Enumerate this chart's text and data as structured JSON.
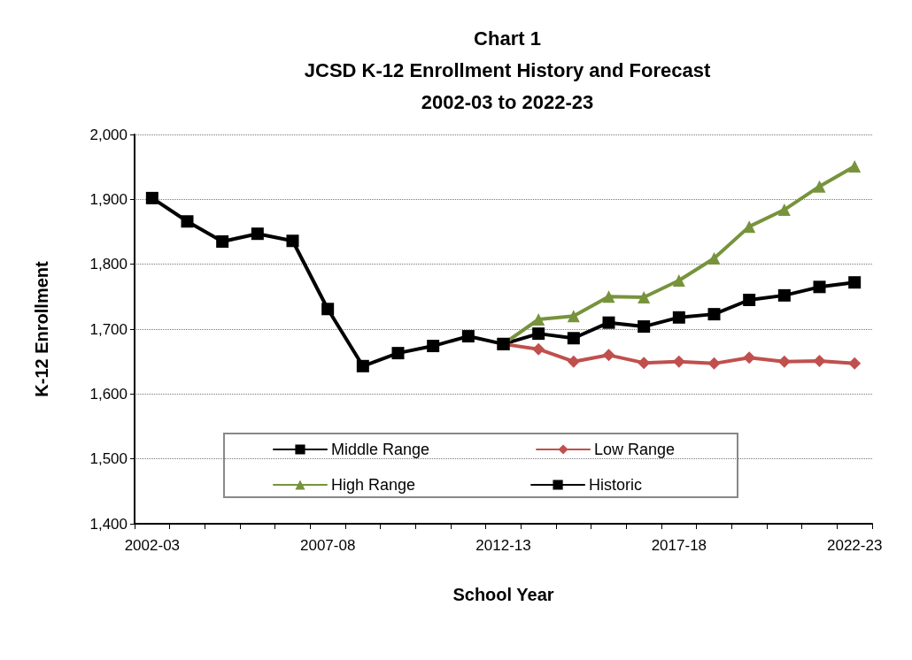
{
  "chart_data": {
    "type": "line",
    "title": "Chart 1\nJCSD K-12 Enrollment History and Forecast\n2002-03 to 2022-23",
    "xlabel": "School Year",
    "ylabel": "K-12 Enrollment",
    "categories": [
      "2002-03",
      null,
      null,
      null,
      null,
      "2007-08",
      null,
      null,
      null,
      null,
      "2012-13",
      null,
      null,
      null,
      null,
      "2017-18",
      null,
      null,
      null,
      null,
      "2022-23"
    ],
    "series": [
      {
        "name": "Middle Range",
        "color": "#000000",
        "marker": "square",
        "values": [
          null,
          null,
          null,
          null,
          null,
          null,
          null,
          null,
          null,
          null,
          1677,
          1693,
          1686,
          1710,
          1704,
          1718,
          1723,
          1745,
          1752,
          1765,
          1772
        ]
      },
      {
        "name": "Low Range",
        "color": "#c0504d",
        "marker": "diamond",
        "values": [
          null,
          null,
          null,
          null,
          null,
          null,
          null,
          null,
          null,
          null,
          1677,
          1669,
          1650,
          1660,
          1648,
          1650,
          1647,
          1656,
          1650,
          1651,
          1647
        ]
      },
      {
        "name": "High Range",
        "color": "#77933c",
        "marker": "triangle",
        "values": [
          null,
          null,
          null,
          null,
          null,
          null,
          null,
          null,
          null,
          null,
          1677,
          1715,
          1720,
          1750,
          1749,
          1775,
          1809,
          1858,
          1884,
          1920,
          1951
        ]
      },
      {
        "name": "Historic",
        "color": "#000000",
        "marker": "square",
        "values": [
          1902,
          1866,
          1835,
          1847,
          1836,
          1731,
          1643,
          1663,
          1674,
          1689,
          1677,
          null,
          null,
          null,
          null,
          null,
          null,
          null,
          null,
          null,
          null
        ]
      }
    ],
    "ylim": [
      1400,
      2000
    ],
    "yticks": [
      {
        "value": 1400,
        "label": "1,400"
      },
      {
        "value": 1500,
        "label": "1,500"
      },
      {
        "value": 1600,
        "label": "1,600"
      },
      {
        "value": 1700,
        "label": "1,700"
      },
      {
        "value": 1800,
        "label": "1,800"
      },
      {
        "value": 1900,
        "label": "1,900"
      },
      {
        "value": 2000,
        "label": "2,000"
      }
    ],
    "grid": "y",
    "legend": "bottom",
    "line_style": "solid"
  }
}
